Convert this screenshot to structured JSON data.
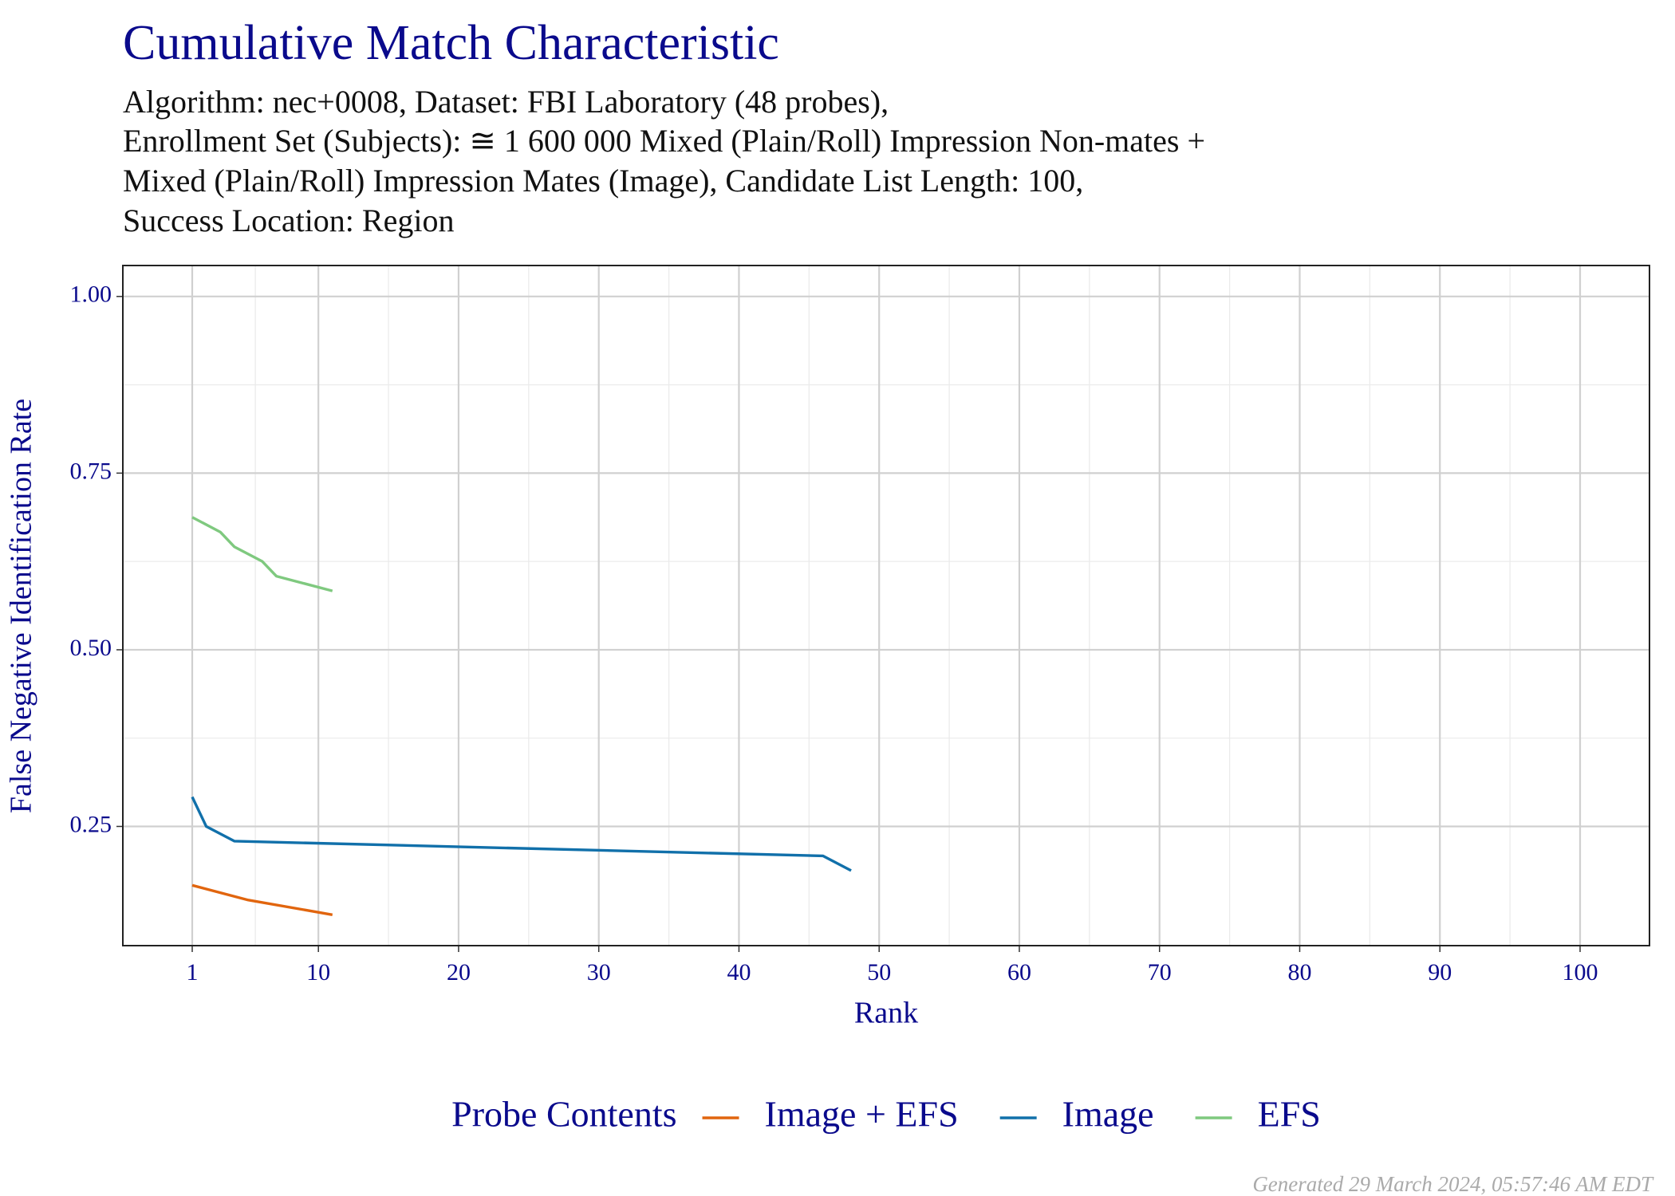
{
  "chart_data": {
    "type": "line",
    "title": "Cumulative Match Characteristic",
    "subtitle": [
      "Algorithm: nec+0008, Dataset: FBI Laboratory (48 probes),",
      "Enrollment Set (Subjects): ≅ 1 600 000 Mixed (Plain/Roll) Impression Non-mates +",
      "Mixed (Plain/Roll) Impression Mates (Image), Candidate List Length: 100,",
      "Success Location: Region"
    ],
    "x_label": "Rank",
    "y_label": "False Negative Identification Rate",
    "legend_title": "Probe Contents",
    "legend_position": "bottom",
    "grid": true,
    "footer": "Generated 29 March 2024, 05:57:46 AM EDT",
    "xlim": [
      -3.95,
      104.95
    ],
    "xticks": [
      1,
      10,
      20,
      30,
      40,
      50,
      60,
      70,
      80,
      90,
      100
    ],
    "ylim": [
      0.0813,
      1.0438
    ],
    "yticks": [
      0.25,
      {
        "value": 0.5,
        "label": "0.50"
      },
      0.75,
      {
        "value": 1,
        "label": "1.00"
      }
    ],
    "series": [
      {
        "name": "Image + EFS",
        "color": "#e1650e",
        "x": [
          1,
          5,
          11
        ],
        "values": [
          0.1667,
          0.1458,
          0.125
        ]
      },
      {
        "name": "Image",
        "color": "#1170aa",
        "x": [
          1,
          2,
          4,
          46,
          48
        ],
        "values": [
          0.2917,
          0.25,
          0.2292,
          0.2083,
          0.1875
        ]
      },
      {
        "name": "EFS",
        "color": "#7fc97f",
        "x": [
          1,
          3,
          4,
          6,
          7,
          11
        ],
        "values": [
          0.6875,
          0.6667,
          0.6458,
          0.625,
          0.6042,
          0.5833
        ]
      }
    ]
  }
}
